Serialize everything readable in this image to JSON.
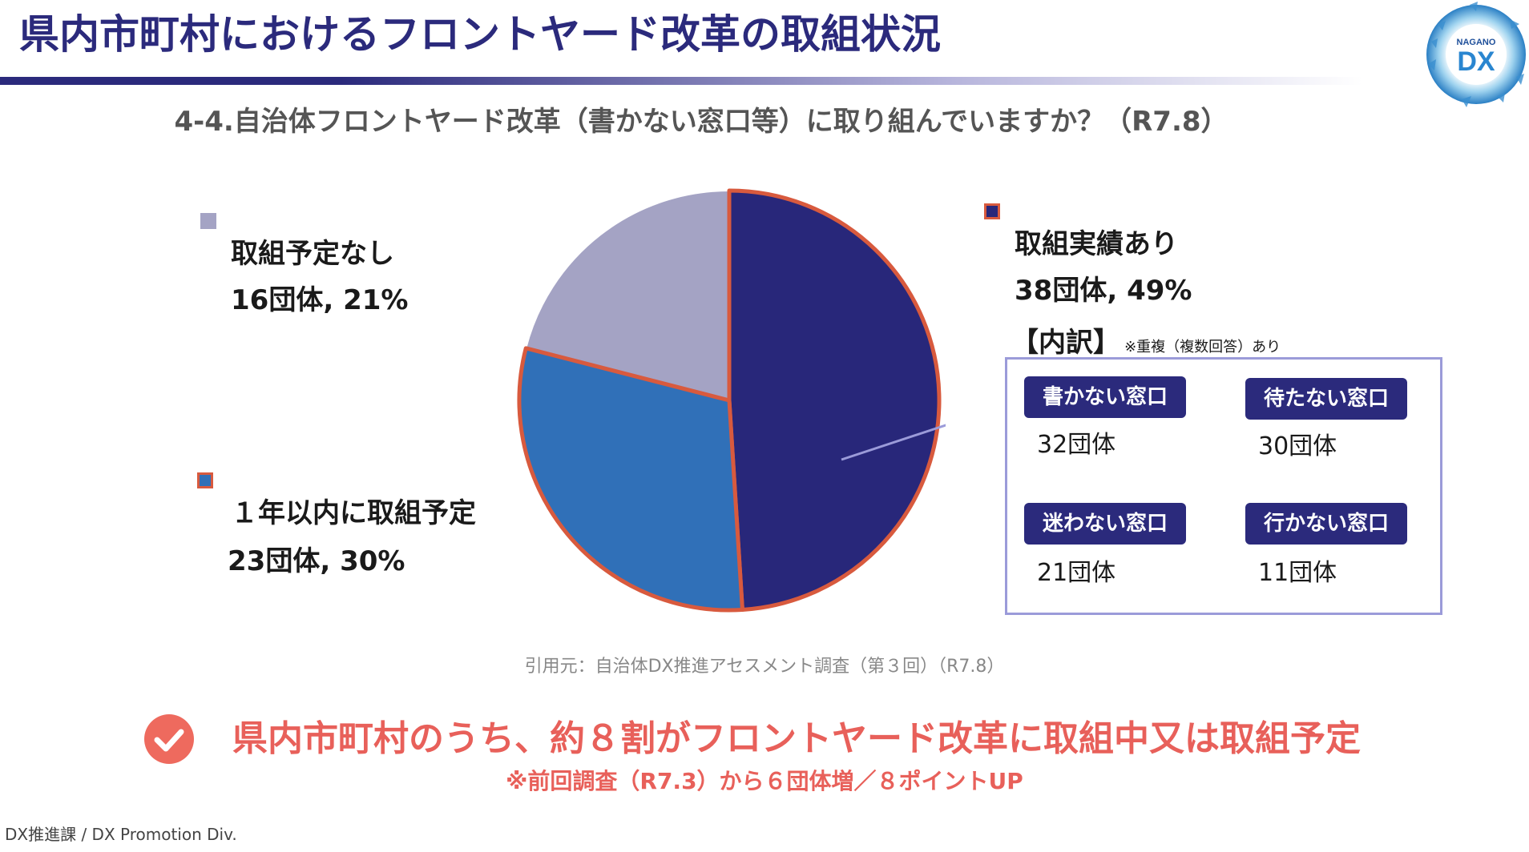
{
  "header": {
    "title": "県内市町村におけるフロントヤード改革の取組状況",
    "logo_top": "NAGANO",
    "logo_main": "DX"
  },
  "question": "4-4.自治体フロントヤード改革（書かない窓口等）に取り組んでいますか？（R7.8）",
  "chart_data": {
    "type": "pie",
    "title": "4-4.自治体フロントヤード改革（書かない窓口等）に取り組んでいますか？（R7.8）",
    "slices": [
      {
        "label": "取組実績あり",
        "value_text": "38団体, 49%",
        "count": 38,
        "percent": 49,
        "color": "#28277a",
        "highlighted": true
      },
      {
        "label": "１年以内に取組予定",
        "value_text": "23団体, 30%",
        "count": 23,
        "percent": 30,
        "color": "#3070b8",
        "highlighted": true
      },
      {
        "label": "取組予定なし",
        "value_text": "16団体, 21%",
        "count": 16,
        "percent": 21,
        "color": "#a4a3c4",
        "highlighted": false
      }
    ],
    "highlight_color": "#d85a3e",
    "start": "top",
    "direction": "clockwise"
  },
  "breakdown": {
    "heading": "【内訳】",
    "note": "※重複（複数回答）あり",
    "items": [
      {
        "label": "書かない窓口",
        "count": "32団体"
      },
      {
        "label": "待たない窓口",
        "count": "30団体"
      },
      {
        "label": "迷わない窓口",
        "count": "21団体"
      },
      {
        "label": "行かない窓口",
        "count": "11団体"
      }
    ]
  },
  "source": "引用元：自治体DX推進アセスメント調査（第３回）（R7.8）",
  "conclusion": "県内市町村のうち、約８割がフロントヤード改革に取組中又は取組予定",
  "conclusion_note": "※前回調査（R7.3）から６団体増／８ポイントUP",
  "footer": "DX推進課 / DX Promotion Div."
}
